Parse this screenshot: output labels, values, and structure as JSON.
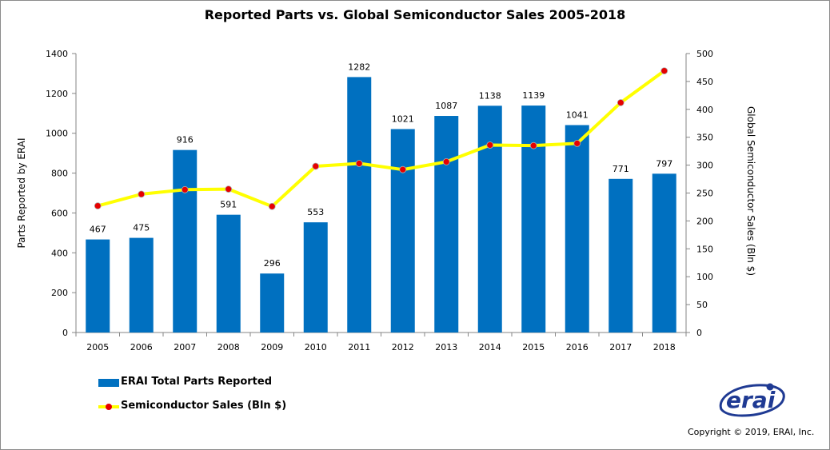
{
  "chart_data": {
    "type": "bar",
    "title": "Reported Parts vs. Global Semiconductor Sales 2005-2018",
    "categories": [
      "2005",
      "2006",
      "2007",
      "2008",
      "2009",
      "2010",
      "2011",
      "2012",
      "2013",
      "2014",
      "2015",
      "2016",
      "2017",
      "2018"
    ],
    "series": [
      {
        "name": "ERAI Total Parts Reported",
        "type": "bar",
        "axis": "left",
        "color": "#0070c0",
        "values": [
          467,
          475,
          916,
          591,
          296,
          553,
          1282,
          1021,
          1087,
          1138,
          1139,
          1041,
          771,
          797
        ]
      },
      {
        "name": "Semiconductor Sales (Bln $)",
        "type": "line",
        "axis": "right",
        "color": "#ffff00",
        "marker_color": "#e60000",
        "values": [
          227,
          248,
          256,
          257,
          226,
          298,
          303,
          292,
          306,
          336,
          335,
          339,
          412,
          469
        ]
      }
    ],
    "ylabel": "Parts Reported by ERAI",
    "ylim": [
      0,
      1400
    ],
    "yticks": [
      "0",
      "200",
      "400",
      "600",
      "800",
      "1000",
      "1200",
      "1400"
    ],
    "y2label": "Global Semiconductor Sales (Bln $)",
    "y2lim": [
      0,
      500
    ],
    "y2ticks": [
      "0",
      "50",
      "100",
      "150",
      "200",
      "250",
      "300",
      "350",
      "400",
      "450",
      "500"
    ],
    "grid": false,
    "data_labels": true,
    "legend_position": "bottom-left"
  },
  "legend": {
    "bar_label": "ERAI Total Parts Reported",
    "line_label": "Semiconductor Sales (Bln $)"
  },
  "logo": {
    "text": "erai",
    "color": "#1f3a93"
  },
  "footer": {
    "copyright": "Copyright © 2019, ERAI, Inc."
  }
}
